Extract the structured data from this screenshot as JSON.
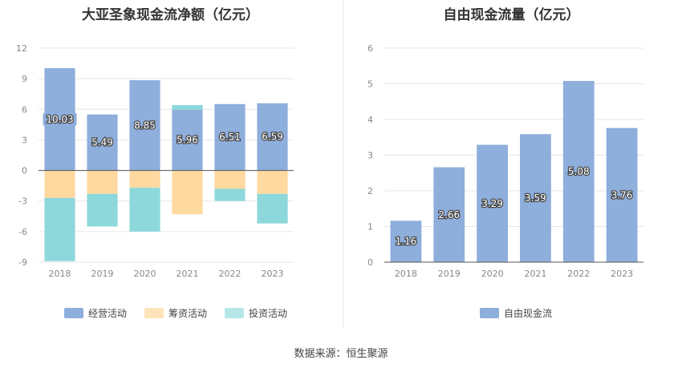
{
  "source_text": "数据来源：恒生聚源",
  "colors": {
    "operating": "#8eaedc",
    "financing": "#ffd9a0",
    "investing": "#8dd8da",
    "free": "#8eaedc",
    "grid": "#e6e6e6",
    "axis": "#555555",
    "tick_text": "#888888"
  },
  "chart_data": [
    {
      "type": "bar",
      "stacked": true,
      "title": "大亚圣象现金流净额（亿元）",
      "categories": [
        "2018",
        "2019",
        "2020",
        "2021",
        "2022",
        "2023"
      ],
      "ylim": [
        -9,
        12
      ],
      "yticks": [
        -9,
        -6,
        -3,
        0,
        3,
        6,
        9,
        12
      ],
      "grid": true,
      "legend_position": "bottom",
      "series": [
        {
          "name": "经营活动",
          "values": [
            10.03,
            5.49,
            8.85,
            5.96,
            6.51,
            6.59
          ],
          "labels": [
            "10.03",
            "5.49",
            "8.85",
            "5.96",
            "6.51",
            "6.59"
          ]
        },
        {
          "name": "筹资活动",
          "values": [
            -2.7,
            -2.3,
            -1.7,
            -4.3,
            -1.8,
            -2.3
          ]
        },
        {
          "name": "投资活动",
          "values": [
            -6.2,
            -3.2,
            -4.3,
            0.45,
            -1.2,
            -2.9
          ]
        }
      ]
    },
    {
      "type": "bar",
      "title": "自由现金流量（亿元）",
      "categories": [
        "2018",
        "2019",
        "2020",
        "2021",
        "2022",
        "2023"
      ],
      "ylim": [
        0,
        6
      ],
      "yticks": [
        0,
        1,
        2,
        3,
        4,
        5,
        6
      ],
      "grid": true,
      "legend_position": "bottom",
      "series": [
        {
          "name": "自由现金流",
          "values": [
            1.16,
            2.66,
            3.29,
            3.59,
            5.08,
            3.76
          ],
          "labels": [
            "1.16",
            "2.66",
            "3.29",
            "3.59",
            "5.08",
            "3.76"
          ]
        }
      ]
    }
  ]
}
